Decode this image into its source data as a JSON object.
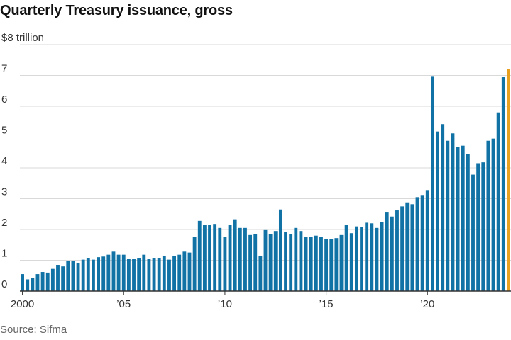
{
  "header": {
    "title": "Quarterly Treasury issuance, gross"
  },
  "footer": {
    "source": "Source: Sifma"
  },
  "colors": {
    "bar": "#1172a6",
    "highlight": "#e8a020",
    "grid": "#d9d9d9",
    "axis": "#333333"
  },
  "chart_data": {
    "type": "bar",
    "title": "Quarterly Treasury issuance, gross",
    "unit_label": "$8 trillion",
    "ylim": [
      0,
      8
    ],
    "yticks": [
      0,
      1,
      2,
      3,
      4,
      5,
      6,
      7,
      8
    ],
    "ytick_labels": [
      "0",
      "1",
      "2",
      "3",
      "4",
      "5",
      "6",
      "7",
      "$8 trillion"
    ],
    "xticks": [
      {
        "year": 2000,
        "label": "2000"
      },
      {
        "year": 2005,
        "label": "’05"
      },
      {
        "year": 2010,
        "label": "’10"
      },
      {
        "year": 2015,
        "label": "’15"
      },
      {
        "year": 2020,
        "label": "’20"
      }
    ],
    "grid": true,
    "start_year": 2000,
    "highlight_last": true,
    "values": [
      0.55,
      0.38,
      0.42,
      0.55,
      0.62,
      0.6,
      0.72,
      0.85,
      0.8,
      0.98,
      0.98,
      0.92,
      1.02,
      1.08,
      1.02,
      1.1,
      1.12,
      1.18,
      1.28,
      1.18,
      1.18,
      1.05,
      1.05,
      1.08,
      1.18,
      1.05,
      1.08,
      1.08,
      1.15,
      1.02,
      1.15,
      1.18,
      1.28,
      1.25,
      1.75,
      2.28,
      2.15,
      2.15,
      2.18,
      2.05,
      1.75,
      2.15,
      2.33,
      2.05,
      2.05,
      1.82,
      1.85,
      1.15,
      1.98,
      1.85,
      1.95,
      2.65,
      1.92,
      1.85,
      2.05,
      1.95,
      1.75,
      1.75,
      1.8,
      1.75,
      1.7,
      1.7,
      1.72,
      1.82,
      2.15,
      1.88,
      2.1,
      2.08,
      2.22,
      2.2,
      2.05,
      2.25,
      2.55,
      2.42,
      2.62,
      2.75,
      2.88,
      2.82,
      3.05,
      3.12,
      3.28,
      6.98,
      5.18,
      5.42,
      4.88,
      5.12,
      4.68,
      4.72,
      4.45,
      3.78,
      4.15,
      4.18,
      4.88,
      4.95,
      5.8,
      6.95,
      7.2
    ]
  }
}
